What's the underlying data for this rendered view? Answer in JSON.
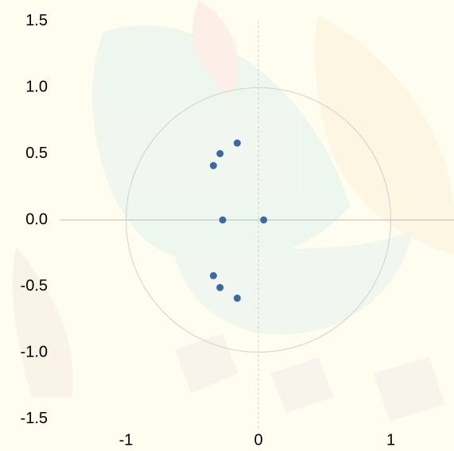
{
  "chart_data": {
    "type": "scatter",
    "x": [
      -0.16,
      -0.29,
      -0.34,
      -0.27,
      0.04,
      -0.34,
      -0.29,
      -0.16
    ],
    "values": [
      0.58,
      0.5,
      0.41,
      0,
      0,
      -0.42,
      -0.51,
      -0.59
    ],
    "color": "#3b68a8",
    "xlim": [
      -1.5,
      1.5
    ],
    "ylim": [
      -1.5,
      1.5
    ],
    "xticks": [
      -1,
      0,
      1
    ],
    "yticks": [
      {
        "value": 1.5,
        "label": "1.5"
      },
      {
        "value": 1,
        "label": "1.0"
      },
      {
        "value": 0.5,
        "label": "0.5"
      },
      {
        "value": 0,
        "label": "0.0"
      },
      {
        "value": -0.5,
        "label": "-0.5"
      },
      {
        "value": -1,
        "label": "-1.0"
      },
      {
        "value": -1.5,
        "label": "-1.5"
      }
    ],
    "circle_radius": 1
  }
}
